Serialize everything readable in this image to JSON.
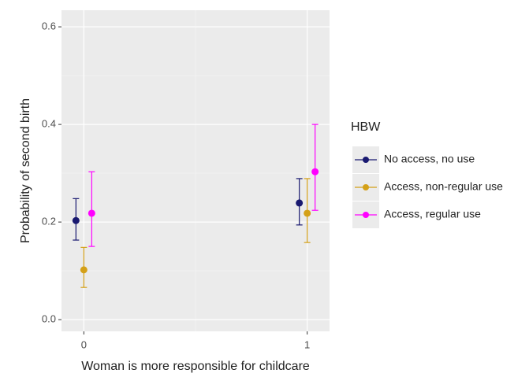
{
  "chart_data": {
    "type": "errorpoint",
    "x_label": "Woman is more responsible for childcare",
    "y_label": "Probability of second birth",
    "x": [
      0,
      1
    ],
    "xlim": [
      -0.1,
      1.1
    ],
    "xticks": [
      0,
      1
    ],
    "ylim": [
      -0.024,
      0.634
    ],
    "yticks": [
      {
        "value": 0,
        "label": "0.0"
      },
      {
        "value": 0.2,
        "label": "0.2"
      },
      {
        "value": 0.4,
        "label": "0.4"
      },
      {
        "value": 0.6,
        "label": "0.6"
      }
    ],
    "grid": true,
    "legend_title": "HBW",
    "legend_position": "right",
    "series": [
      {
        "name": "No access, no use",
        "color": "#191970",
        "values": [
          0.203,
          0.239
        ],
        "lower": [
          0.163,
          0.194
        ],
        "upper": [
          0.248,
          0.289
        ]
      },
      {
        "name": "Access, non-regular use",
        "color": "#d4a017",
        "values": [
          0.102,
          0.218
        ],
        "lower": [
          0.066,
          0.158
        ],
        "upper": [
          0.148,
          0.289
        ]
      },
      {
        "name": "Access, regular use",
        "color": "#ff00ff",
        "values": [
          0.218,
          0.303
        ],
        "lower": [
          0.15,
          0.224
        ],
        "upper": [
          0.303,
          0.4
        ]
      }
    ]
  }
}
